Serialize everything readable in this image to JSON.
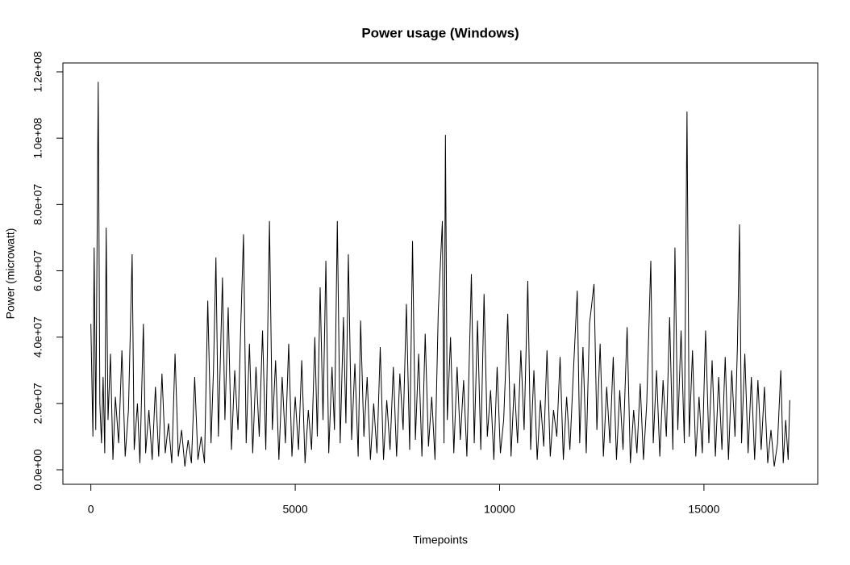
{
  "chart_data": {
    "type": "line",
    "title": "Power usage (Windows)",
    "x_label": "Timepoints",
    "y_label": "Power (microwatt)",
    "color": "#000000",
    "xlim": [
      -684,
      17784
    ],
    "ylim": [
      -4380000,
      122680000
    ],
    "xticks": [
      0,
      5000,
      10000,
      15000
    ],
    "yticks": [
      {
        "value": 0,
        "label": "0.0e+00"
      },
      {
        "value": 20000000,
        "label": "2.0e+07"
      },
      {
        "value": 40000000,
        "label": "4.0e+07"
      },
      {
        "value": 60000000,
        "label": "6.0e+07"
      },
      {
        "value": 80000000,
        "label": "8.0e+07"
      },
      {
        "value": 100000000,
        "label": "1.0e+08"
      },
      {
        "value": 120000000,
        "label": "1.2e+08"
      }
    ],
    "x": [
      0,
      50,
      80,
      120,
      180,
      220,
      260,
      300,
      340,
      375,
      420,
      480,
      540,
      600,
      680,
      760,
      840,
      920,
      1010,
      1060,
      1140,
      1200,
      1285,
      1340,
      1420,
      1500,
      1580,
      1660,
      1740,
      1820,
      1900,
      1980,
      2060,
      2140,
      2220,
      2300,
      2380,
      2460,
      2540,
      2620,
      2700,
      2780,
      2860,
      2940,
      3000,
      3060,
      3120,
      3220,
      3280,
      3360,
      3440,
      3520,
      3600,
      3660,
      3735,
      3800,
      3880,
      3960,
      4040,
      4120,
      4200,
      4280,
      4370,
      4440,
      4520,
      4600,
      4680,
      4760,
      4840,
      4920,
      5000,
      5080,
      5160,
      5240,
      5320,
      5400,
      5480,
      5540,
      5610,
      5680,
      5750,
      5820,
      5900,
      5960,
      6030,
      6100,
      6180,
      6240,
      6300,
      6380,
      6460,
      6540,
      6600,
      6680,
      6760,
      6840,
      6920,
      7000,
      7080,
      7160,
      7240,
      7320,
      7400,
      7480,
      7560,
      7640,
      7720,
      7800,
      7870,
      7940,
      8020,
      8100,
      8180,
      8260,
      8340,
      8420,
      8500,
      8600,
      8640,
      8675,
      8720,
      8800,
      8880,
      8960,
      9040,
      9120,
      9200,
      9310,
      9380,
      9460,
      9540,
      9620,
      9700,
      9780,
      9860,
      9940,
      10020,
      10100,
      10200,
      10280,
      10360,
      10440,
      10520,
      10600,
      10690,
      10760,
      10840,
      10920,
      11000,
      11080,
      11160,
      11240,
      11320,
      11400,
      11480,
      11560,
      11640,
      11720,
      11800,
      11900,
      11960,
      12040,
      12120,
      12200,
      12310,
      12380,
      12460,
      12540,
      12620,
      12700,
      12780,
      12860,
      12940,
      13020,
      13120,
      13200,
      13280,
      13360,
      13440,
      13520,
      13600,
      13700,
      13760,
      13840,
      13920,
      14000,
      14080,
      14160,
      14240,
      14290,
      14360,
      14440,
      14520,
      14585,
      14640,
      14720,
      14800,
      14880,
      14960,
      15040,
      15120,
      15200,
      15280,
      15360,
      15440,
      15520,
      15600,
      15680,
      15760,
      15820,
      15870,
      15920,
      16000,
      16080,
      16160,
      16240,
      16320,
      16400,
      16480,
      16560,
      16640,
      16720,
      16800,
      16880,
      16940,
      17000,
      17060,
      17100
    ],
    "values": [
      44000000,
      10000000,
      67000000,
      12000000,
      117000000,
      20000000,
      8000000,
      28000000,
      5000000,
      73000000,
      15000000,
      35000000,
      3000000,
      22000000,
      8000000,
      36000000,
      4000000,
      18000000,
      65000000,
      6000000,
      20000000,
      2000000,
      44000000,
      5000000,
      18000000,
      3000000,
      25000000,
      4000000,
      29000000,
      5000000,
      14000000,
      2000000,
      35000000,
      4000000,
      12000000,
      1000000,
      9000000,
      2000000,
      28000000,
      3000000,
      10000000,
      2000000,
      51000000,
      8000000,
      30000000,
      64000000,
      10000000,
      58000000,
      15000000,
      49000000,
      6000000,
      30000000,
      12000000,
      40000000,
      71000000,
      8000000,
      38000000,
      5000000,
      31000000,
      10000000,
      42000000,
      6000000,
      75000000,
      12000000,
      33000000,
      3000000,
      28000000,
      8000000,
      38000000,
      4000000,
      22000000,
      6000000,
      33000000,
      2000000,
      18000000,
      6000000,
      40000000,
      10000000,
      55000000,
      15000000,
      63000000,
      5000000,
      31000000,
      12000000,
      75000000,
      8000000,
      46000000,
      14000000,
      65000000,
      9000000,
      32000000,
      4000000,
      45000000,
      10000000,
      28000000,
      3000000,
      20000000,
      5000000,
      37000000,
      3000000,
      21000000,
      6000000,
      31000000,
      4000000,
      29000000,
      12000000,
      50000000,
      6000000,
      69000000,
      9000000,
      35000000,
      4000000,
      41000000,
      7000000,
      22000000,
      3000000,
      48000000,
      75000000,
      8000000,
      101000000,
      15000000,
      40000000,
      5000000,
      31000000,
      9000000,
      27000000,
      4000000,
      59000000,
      8000000,
      45000000,
      6000000,
      53000000,
      10000000,
      24000000,
      3000000,
      31000000,
      5000000,
      15000000,
      47000000,
      4000000,
      26000000,
      8000000,
      36000000,
      12000000,
      57000000,
      6000000,
      30000000,
      3000000,
      21000000,
      7000000,
      36000000,
      4000000,
      18000000,
      10000000,
      34000000,
      3000000,
      22000000,
      6000000,
      28000000,
      54000000,
      8000000,
      37000000,
      5000000,
      44000000,
      56000000,
      12000000,
      38000000,
      4000000,
      25000000,
      8000000,
      34000000,
      3000000,
      24000000,
      6000000,
      43000000,
      2000000,
      18000000,
      5000000,
      26000000,
      3000000,
      20000000,
      63000000,
      8000000,
      30000000,
      4000000,
      27000000,
      10000000,
      46000000,
      6000000,
      67000000,
      12000000,
      42000000,
      8000000,
      108000000,
      10000000,
      36000000,
      4000000,
      22000000,
      5000000,
      42000000,
      8000000,
      33000000,
      4000000,
      28000000,
      6000000,
      34000000,
      3000000,
      30000000,
      10000000,
      38000000,
      74000000,
      8000000,
      35000000,
      5000000,
      28000000,
      3000000,
      27000000,
      6000000,
      25000000,
      2000000,
      12000000,
      1000000,
      8000000,
      30000000,
      2000000,
      15000000,
      3000000,
      21000000
    ]
  }
}
